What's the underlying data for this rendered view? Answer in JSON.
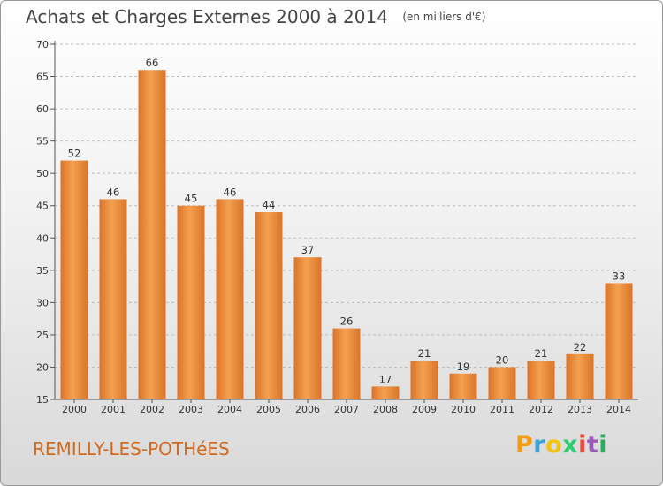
{
  "page": {
    "title": "Achats et Charges Externes 2000 à 2014",
    "unit": "(en milliers d'€)",
    "place": "REMILLY-LES-POTHéES",
    "logo": {
      "letters": [
        "P",
        "r",
        "o",
        "x",
        "i",
        "t",
        "i"
      ],
      "colors": [
        "#f39c12",
        "#3aa1d9",
        "#f1c40f",
        "#2ecc71",
        "#e74c3c",
        "#9b59b6",
        "#27ae60"
      ]
    }
  },
  "chart_data": {
    "type": "bar",
    "title": "Achats et Charges Externes 2000 à 2014",
    "subtitle": "(en milliers d'€)",
    "categories": [
      "2000",
      "2001",
      "2002",
      "2003",
      "2004",
      "2005",
      "2006",
      "2007",
      "2008",
      "2009",
      "2010",
      "2011",
      "2012",
      "2013",
      "2014"
    ],
    "values": [
      52,
      46,
      66,
      45,
      46,
      44,
      37,
      26,
      17,
      21,
      19,
      20,
      21,
      22,
      33
    ],
    "ylim": [
      15,
      70
    ],
    "yticks": [
      15,
      20,
      25,
      30,
      35,
      40,
      45,
      50,
      55,
      60,
      65,
      70
    ],
    "grid": "y-dashed",
    "bar_color": "#f5a04e",
    "bar_color_dark": "#d9742a"
  }
}
